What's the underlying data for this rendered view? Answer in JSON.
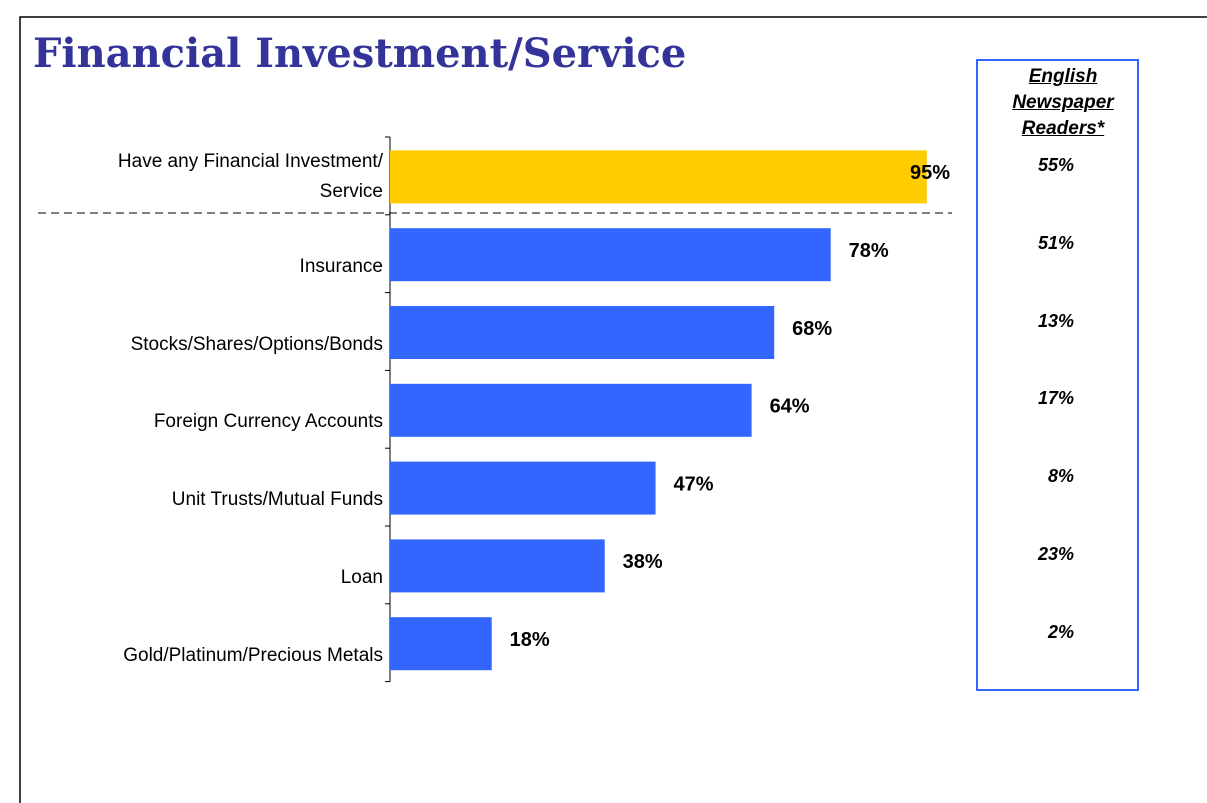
{
  "chart_data": {
    "type": "bar",
    "orientation": "horizontal",
    "title": "Financial Investment/Service",
    "categories": [
      "Have any Financial Investment/\nService",
      "Insurance",
      "Stocks/Shares/Options/Bonds",
      "Foreign Currency Accounts",
      "Unit Trusts/Mutual Funds",
      "Loan",
      "Gold/Platinum/Precious Metals"
    ],
    "values": [
      95,
      78,
      68,
      64,
      47,
      38,
      18
    ],
    "value_labels": [
      "95%",
      "78%",
      "68%",
      "64%",
      "47%",
      "38%",
      "18%"
    ],
    "colors": [
      "#ffcc00",
      "#3366ff",
      "#3366ff",
      "#3366ff",
      "#3366ff",
      "#3366ff",
      "#3366ff"
    ],
    "xlim": [
      0,
      100
    ],
    "side_panel": {
      "title": "English\nNewspaper\nReaders*",
      "values": [
        55,
        51,
        13,
        17,
        8,
        23,
        2
      ],
      "value_labels": [
        "55%",
        "51%",
        "13%",
        "17%",
        "8%",
        "23%",
        "2%"
      ]
    }
  }
}
